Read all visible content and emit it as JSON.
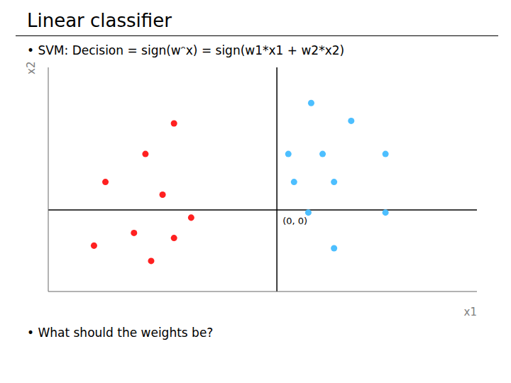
{
  "chart_data": {
    "type": "scatter",
    "title": "Linear classifier",
    "subtitle": "• SVM: Decision = sign(wᵔx) = sign(w1*x1 + w2*x2)",
    "xlabel": "x1",
    "ylabel": "x2",
    "xlim": [
      -4.0,
      3.5
    ],
    "ylim": [
      -1.6,
      2.8
    ],
    "tick_labels": false,
    "grid": false,
    "series": [
      {
        "color": "#FF2020",
        "values": [
          [
            -1.8,
            1.7
          ],
          [
            -2.3,
            1.1
          ],
          [
            -3.0,
            0.55
          ],
          [
            -2.0,
            0.3
          ],
          [
            -1.5,
            -0.15
          ],
          [
            -2.5,
            -0.45
          ],
          [
            -3.2,
            -0.7
          ],
          [
            -1.8,
            -0.55
          ],
          [
            -2.2,
            -1.0
          ]
        ]
      },
      {
        "color": "#4DBFFF",
        "values": [
          [
            0.6,
            2.1
          ],
          [
            1.3,
            1.75
          ],
          [
            0.2,
            1.1
          ],
          [
            0.8,
            1.1
          ],
          [
            1.9,
            1.1
          ],
          [
            0.3,
            0.55
          ],
          [
            1.0,
            0.55
          ],
          [
            0.55,
            -0.05
          ],
          [
            1.9,
            -0.05
          ],
          [
            1.0,
            -0.75
          ]
        ]
      }
    ],
    "annotations": [
      {
        "text": "(0, 0)",
        "x": 0.0,
        "y": 0.0
      },
      {
        "text": "• What should the weights be?"
      }
    ]
  }
}
